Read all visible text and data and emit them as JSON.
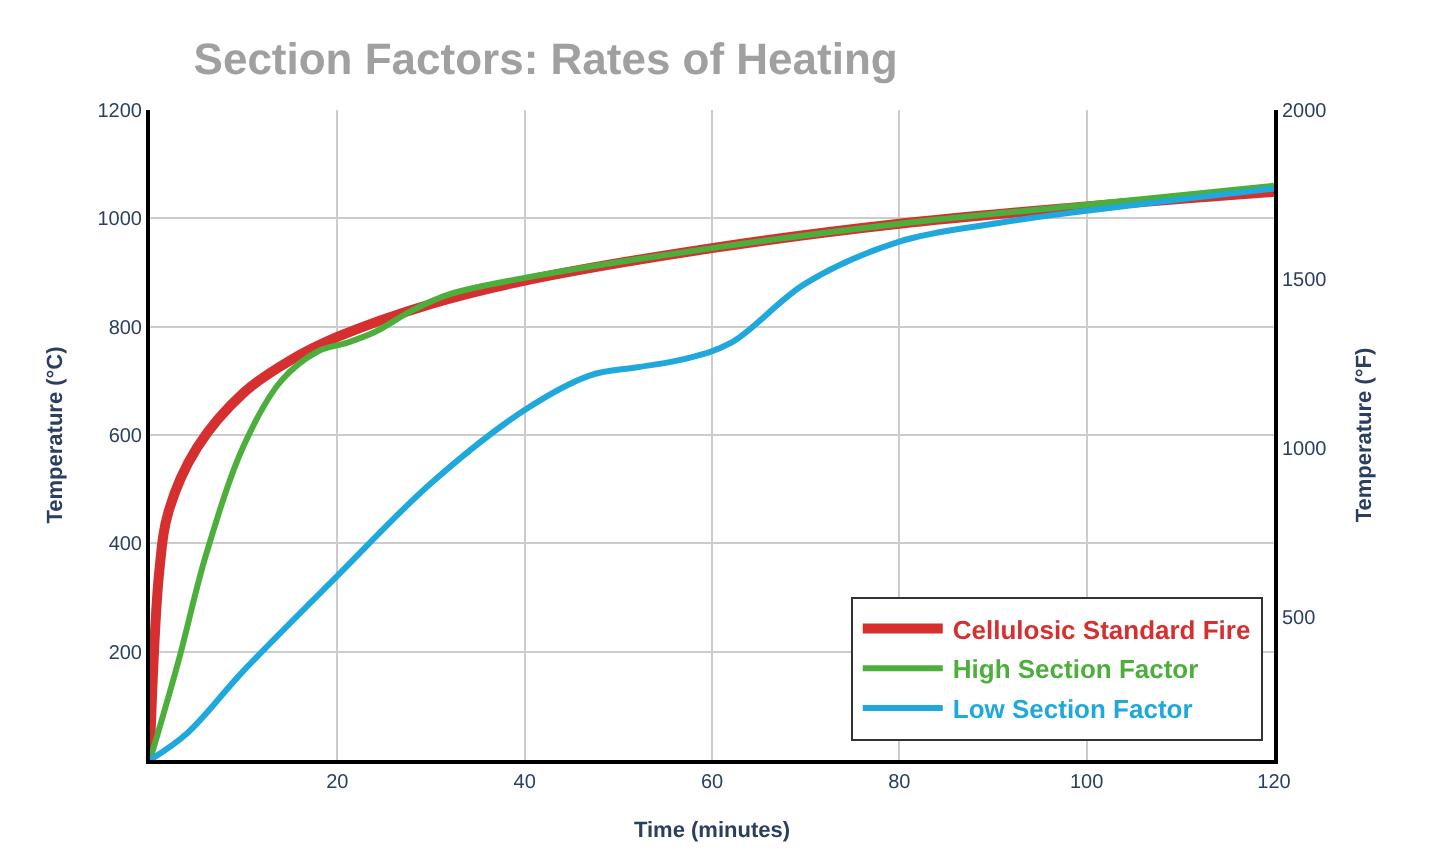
{
  "chart_data": {
    "type": "line",
    "title": "Section Factors: Rates of Heating",
    "xlabel": "Time (minutes)",
    "ylabel": "Temperature (°C)",
    "y2label": "Temperature (°F)",
    "xlim": [
      0,
      120
    ],
    "xticks": [
      20,
      40,
      60,
      80,
      100,
      120
    ],
    "ylim": [
      0,
      1200
    ],
    "yticks": [
      200,
      400,
      600,
      800,
      1000,
      1200
    ],
    "y2lim": [
      75,
      2000
    ],
    "y2ticks": [
      500,
      1000,
      1500,
      2000
    ],
    "grid": true,
    "legend": "bottom right",
    "line_style": "solid",
    "marker": "none",
    "series": [
      {
        "name": "Cellulosic Standard Fire",
        "color": "#d62f2f",
        "x": [
          0,
          1,
          2,
          5,
          10,
          15,
          20,
          30,
          40,
          60,
          80,
          100,
          120
        ],
        "values": [
          20,
          350,
          460,
          576,
          678,
          738,
          781,
          842,
          885,
          945,
          990,
          1022,
          1049
        ]
      },
      {
        "name": "High Section Factor",
        "color": "#4caf3c",
        "x": [
          0,
          3,
          6,
          10,
          14,
          18,
          21,
          24,
          28,
          32,
          40,
          60,
          80,
          100,
          120
        ],
        "values": [
          0,
          180,
          380,
          580,
          700,
          755,
          770,
          790,
          830,
          860,
          890,
          945,
          990,
          1025,
          1060
        ]
      },
      {
        "name": "Low Section Factor",
        "color": "#1fa8dc",
        "x": [
          0,
          4,
          10,
          20,
          30,
          40,
          47,
          52,
          57,
          62,
          70,
          80,
          90,
          100,
          110,
          120
        ],
        "values": [
          0,
          50,
          165,
          340,
          511,
          646,
          710,
          725,
          740,
          770,
          880,
          957,
          990,
          1014,
          1035,
          1055
        ]
      }
    ]
  }
}
